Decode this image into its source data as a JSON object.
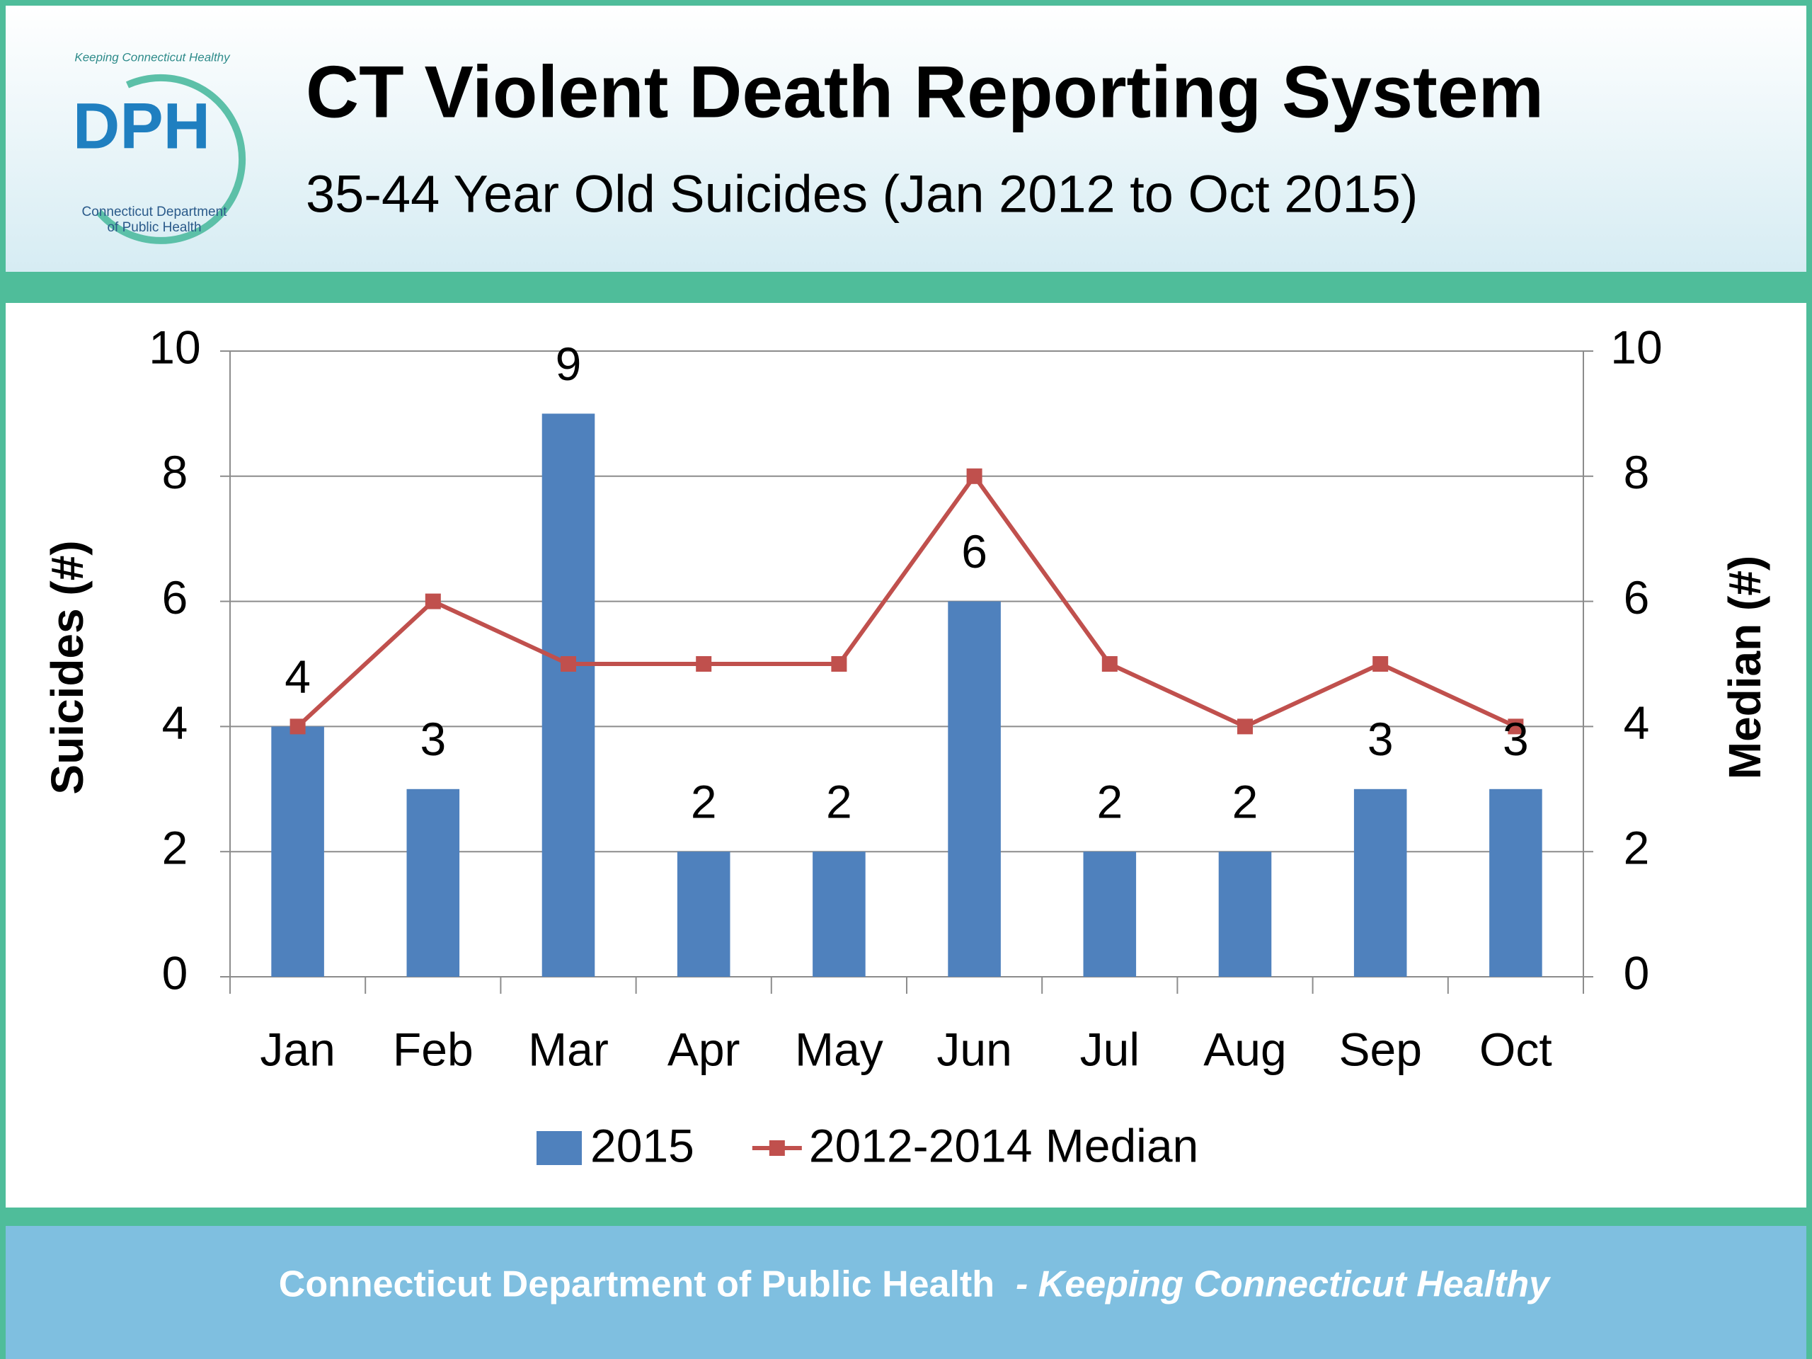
{
  "logo": {
    "text": "DPH",
    "ring_text": "Keeping Connecticut Healthy",
    "caption_line1": "Connecticut Department",
    "caption_line2": "of Public Health"
  },
  "header": {
    "title": "CT Violent Death Reporting System",
    "subtitle": "35-44 Year Old Suicides (Jan 2012 to Oct 2015)"
  },
  "chart_data": {
    "type": "bar",
    "categories": [
      "Jan",
      "Feb",
      "Mar",
      "Apr",
      "May",
      "Jun",
      "Jul",
      "Aug",
      "Sep",
      "Oct"
    ],
    "series": [
      {
        "name": "2015",
        "type": "bar",
        "color": "#4f81bd",
        "values": [
          4,
          3,
          9,
          2,
          2,
          6,
          2,
          2,
          3,
          3
        ]
      },
      {
        "name": "2012-2014 Median",
        "type": "line",
        "axis": "y2",
        "color": "#c0504d",
        "values": [
          4,
          6,
          5,
          5,
          5,
          8,
          5,
          4,
          5,
          4
        ]
      }
    ],
    "ylabel": "Suicides (#)",
    "y2label": "Median (#)",
    "ylim": [
      0,
      10
    ],
    "yticks": [
      0,
      2,
      4,
      6,
      8,
      10
    ],
    "y2lim": [
      0,
      10
    ],
    "y2ticks": [
      0,
      2,
      4,
      6,
      8,
      10
    ],
    "grid": true,
    "data_labels": true,
    "legend": "bottom"
  },
  "footer": {
    "organization": "Connecticut Department of Public Health",
    "tagline": "- Keeping Connecticut Healthy"
  }
}
